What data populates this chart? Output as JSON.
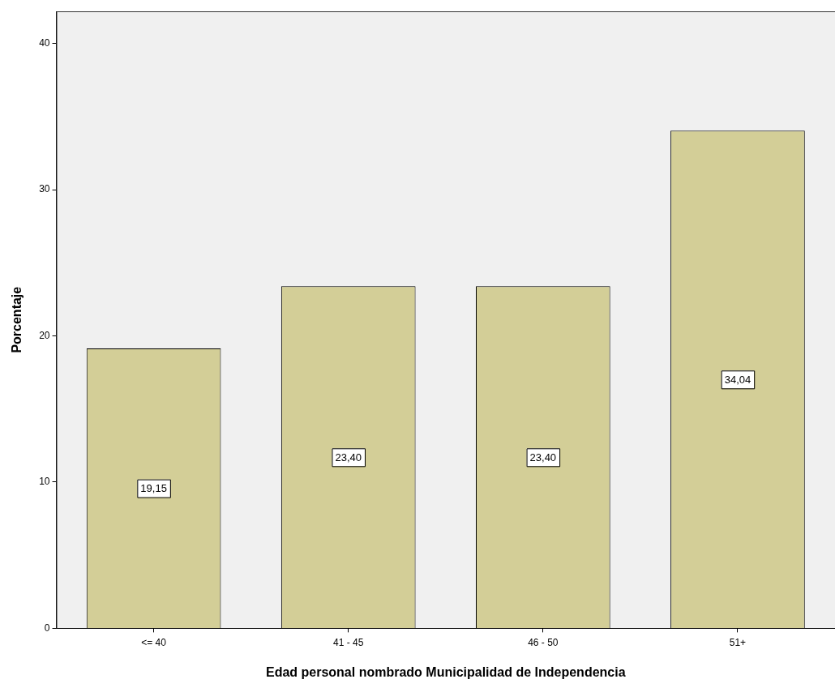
{
  "chart_data": {
    "type": "bar",
    "xlabel": "Edad personal nombrado Municipalidad de Independencia",
    "ylabel": "Porcentaje",
    "categories": [
      "<= 40",
      "41 - 45",
      "46 - 50",
      "51+"
    ],
    "values": [
      19.15,
      23.4,
      23.4,
      34.04
    ],
    "value_labels": [
      "19,15",
      "23,40",
      "23,40",
      "34,04"
    ],
    "color": "#d3ce97",
    "ylim": [
      0,
      42.2
    ],
    "yticks": [
      0,
      10,
      20,
      30,
      40
    ],
    "legend": false
  }
}
